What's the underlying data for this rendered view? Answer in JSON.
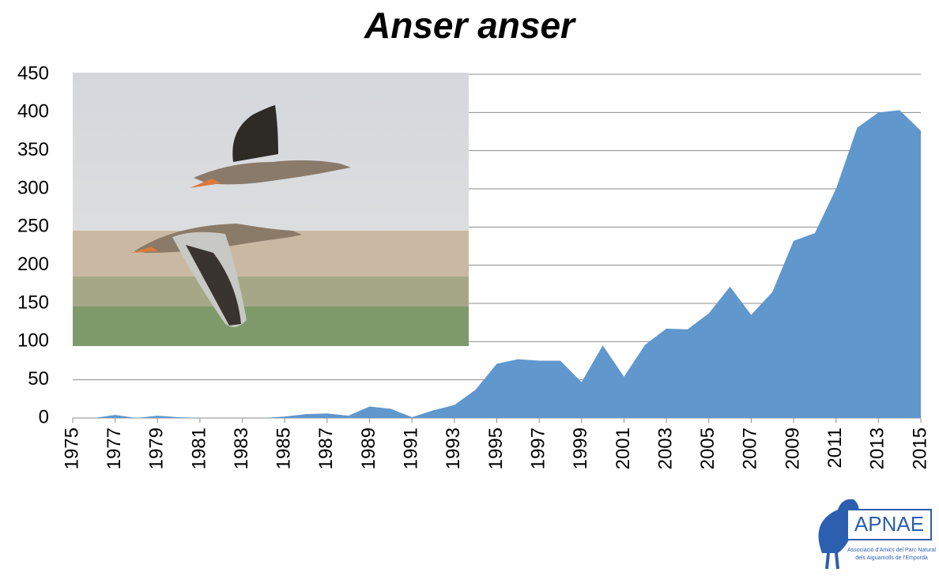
{
  "chart_data": {
    "type": "area",
    "title": "Anser anser",
    "x": [
      1975,
      1976,
      1977,
      1978,
      1979,
      1980,
      1981,
      1982,
      1983,
      1984,
      1985,
      1986,
      1987,
      1988,
      1989,
      1990,
      1991,
      1992,
      1993,
      1994,
      1995,
      1996,
      1997,
      1998,
      1999,
      2000,
      2001,
      2002,
      2003,
      2004,
      2005,
      2006,
      2007,
      2008,
      2009,
      2010,
      2011,
      2012,
      2013,
      2014,
      2015
    ],
    "values": [
      0,
      0,
      4,
      0,
      3,
      1,
      0,
      0,
      0,
      0,
      2,
      5,
      6,
      3,
      15,
      12,
      1,
      10,
      17,
      37,
      71,
      77,
      75,
      75,
      47,
      95,
      54,
      96,
      117,
      116,
      137,
      172,
      135,
      165,
      232,
      242,
      300,
      380,
      400,
      403,
      376
    ],
    "color": "#6097cc",
    "xlim": [
      1975,
      2015
    ],
    "xticks": [
      1975,
      1977,
      1979,
      1981,
      1983,
      1985,
      1987,
      1989,
      1991,
      1993,
      1995,
      1997,
      1999,
      2001,
      2003,
      2005,
      2007,
      2009,
      2011,
      2013,
      2015
    ],
    "ylim": [
      0,
      450
    ],
    "yticks": [
      0,
      50,
      100,
      150,
      200,
      250,
      300,
      350,
      400,
      450
    ],
    "grid": true
  },
  "logo": {
    "name": "APNAE",
    "caption": [
      "Associació d'Amics del Parc Natural",
      "dels Aiguamolls de l'Empordà"
    ]
  }
}
